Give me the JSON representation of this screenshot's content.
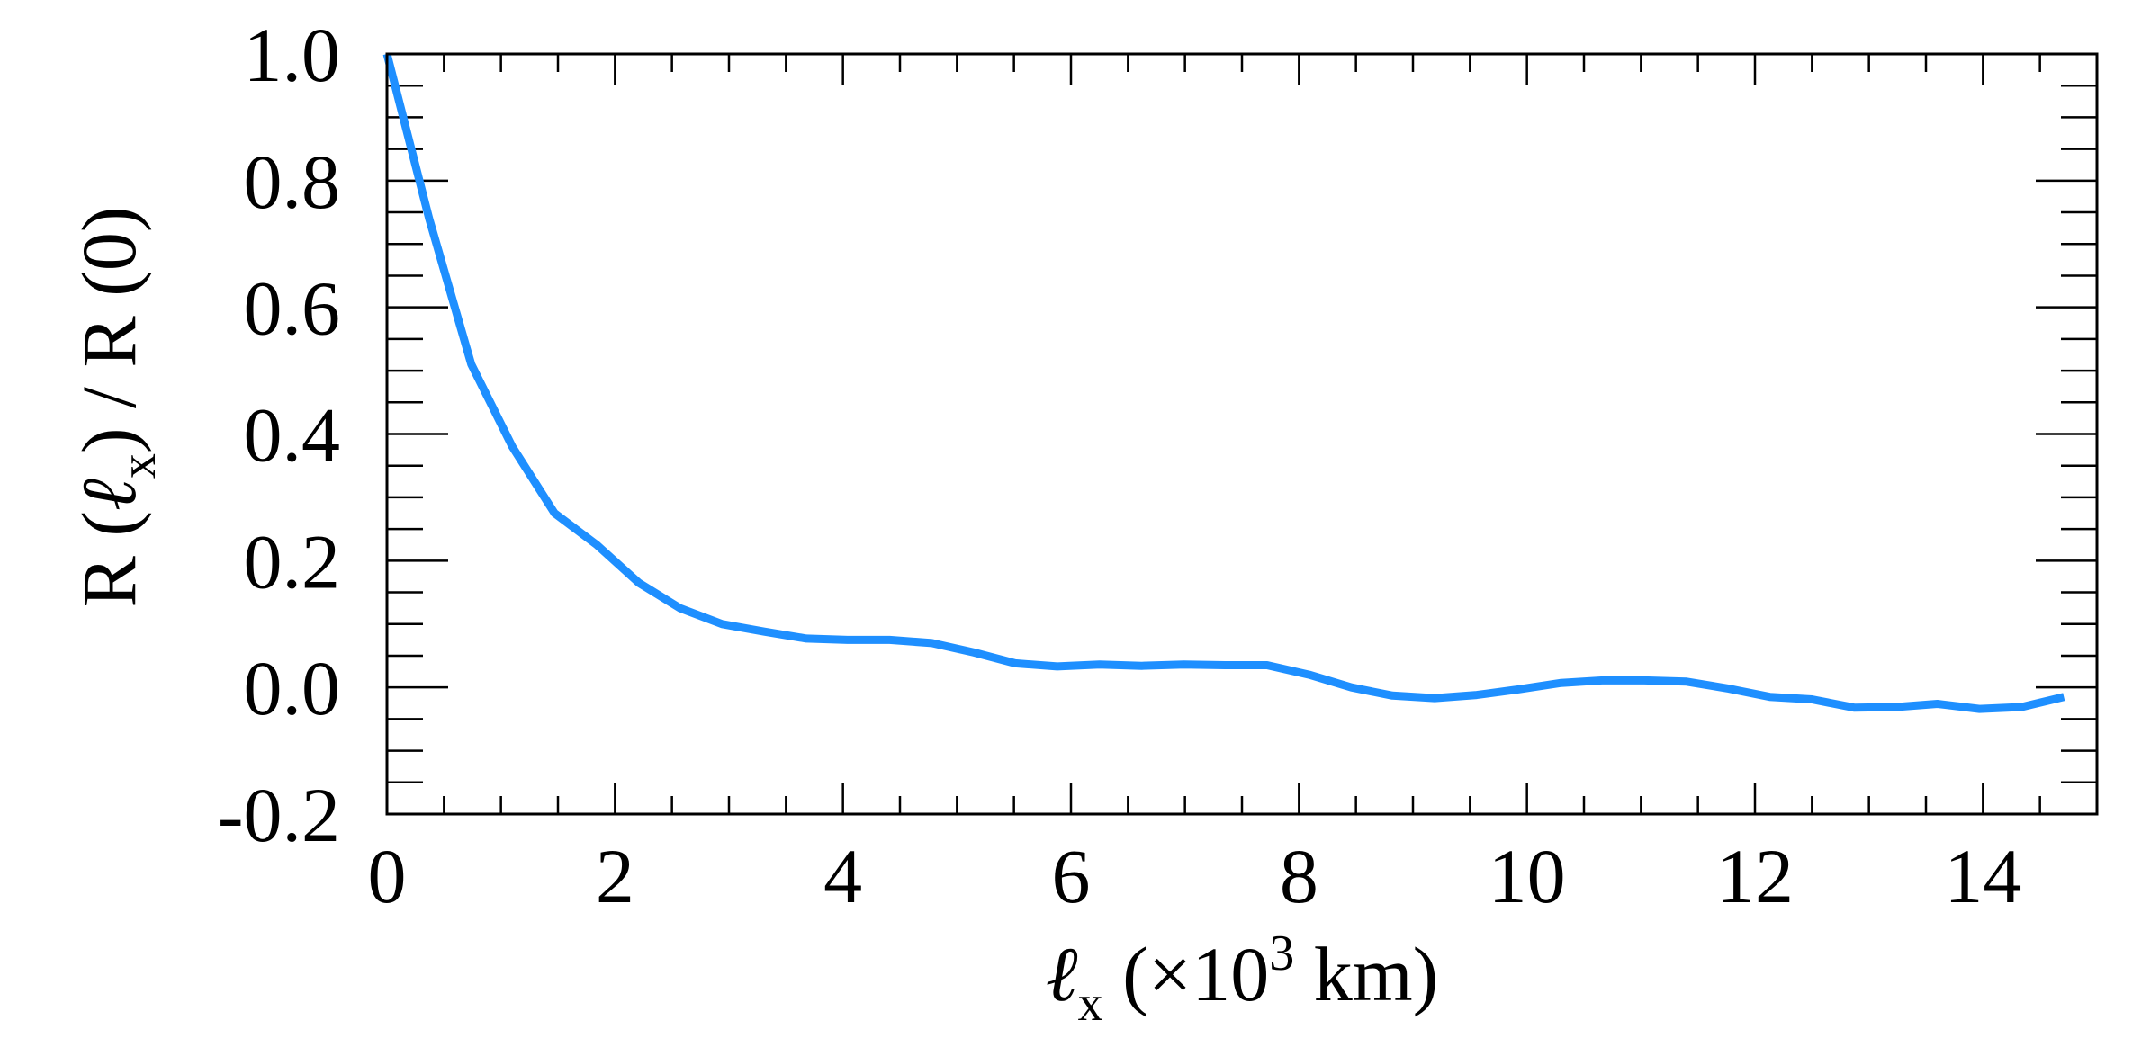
{
  "chart_data": {
    "type": "line",
    "title": "",
    "xlabel": {
      "symbol": "ℓ",
      "subscript": "x",
      "prefix": " (×10",
      "superscript": "3",
      "suffix": " km)"
    },
    "ylabel": {
      "p1": "R (",
      "symbol": "ℓ",
      "subscript": "x",
      "p2": ") / R (0)"
    },
    "xlim": [
      0,
      15
    ],
    "ylim": [
      -0.2,
      1.0
    ],
    "xticks": [
      0,
      2,
      4,
      6,
      8,
      10,
      12,
      14
    ],
    "xtick_labels": [
      "0",
      "2",
      "4",
      "6",
      "8",
      "10",
      "12",
      "14"
    ],
    "yticks": [
      -0.2,
      0.0,
      0.2,
      0.4,
      0.6,
      0.8,
      1.0
    ],
    "ytick_labels": [
      "-0.2",
      "0.0",
      "0.2",
      "0.4",
      "0.6",
      "0.8",
      "1.0"
    ],
    "x_minor_step": 0.5,
    "y_minor_step": 0.05,
    "grid": false,
    "line_color": "#1e8fff",
    "series": [
      {
        "x": [
          0,
          0.37,
          0.74,
          1.1,
          1.47,
          1.84,
          2.21,
          2.57,
          2.94,
          3.31,
          3.68,
          4.04,
          4.41,
          4.78,
          5.15,
          5.51,
          5.88,
          6.25,
          6.62,
          6.99,
          7.35,
          7.72,
          8.09,
          8.46,
          8.82,
          9.19,
          9.56,
          9.93,
          10.3,
          10.66,
          11.03,
          11.4,
          11.77,
          12.13,
          12.5,
          12.87,
          13.24,
          13.6,
          13.97,
          14.34,
          14.71
        ],
        "y": [
          1.0,
          0.74,
          0.51,
          0.38,
          0.275,
          0.225,
          0.165,
          0.125,
          0.1,
          0.088,
          0.077,
          0.075,
          0.075,
          0.07,
          0.055,
          0.038,
          0.033,
          0.036,
          0.034,
          0.036,
          0.035,
          0.035,
          0.02,
          0.0,
          -0.013,
          -0.017,
          -0.012,
          -0.003,
          0.007,
          0.011,
          0.011,
          0.009,
          -0.002,
          -0.015,
          -0.019,
          -0.032,
          -0.031,
          -0.026,
          -0.034,
          -0.031,
          -0.015
        ]
      }
    ]
  }
}
